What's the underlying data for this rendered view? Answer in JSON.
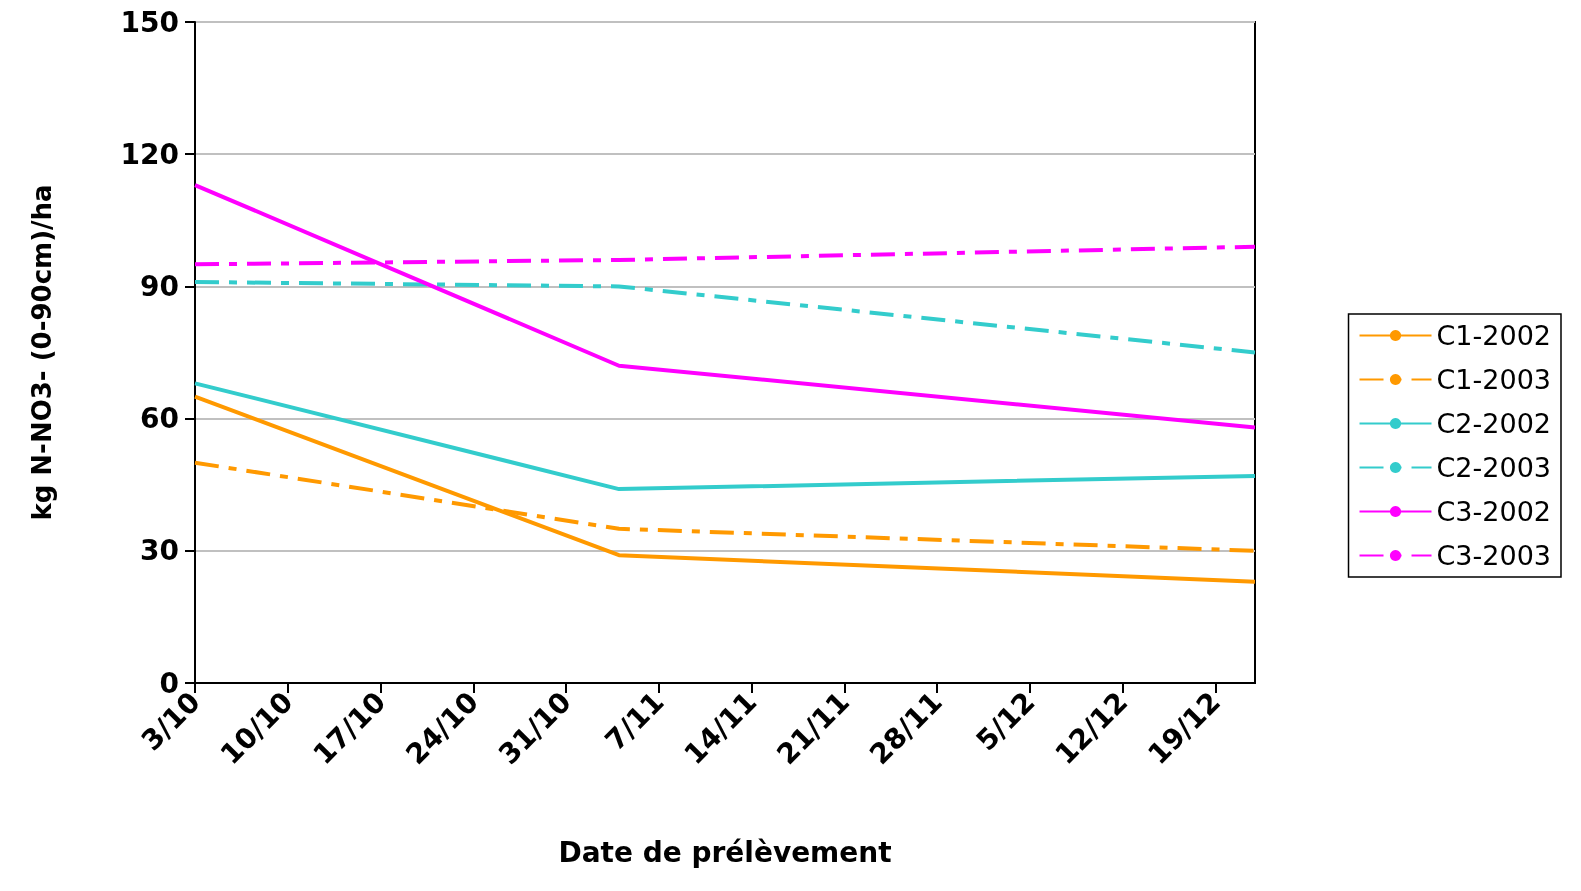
{
  "chart_data": {
    "type": "line",
    "xlabel": "Date de prélèvement",
    "ylabel": "kg N-NO3- (0-90cm)/ha",
    "x": [
      "--10-03",
      "--11-04",
      "--12-22"
    ],
    "series": [
      {
        "name": "C1-2002",
        "color": "#ff9900",
        "values": [
          65,
          29,
          23
        ],
        "line_style": "solid"
      },
      {
        "name": "C1-2003",
        "color": "#ff9900",
        "values": [
          50,
          35,
          30
        ],
        "line_style": "dashed"
      },
      {
        "name": "C2-2002",
        "color": "#33cccc",
        "values": [
          68,
          44,
          47
        ],
        "line_style": "solid"
      },
      {
        "name": "C2-2003",
        "color": "#33cccc",
        "values": [
          91,
          90,
          75
        ],
        "line_style": "dashed"
      },
      {
        "name": "C3-2002",
        "color": "#ff00ff",
        "values": [
          113,
          72,
          58
        ],
        "line_style": "solid"
      },
      {
        "name": "C3-2003",
        "color": "#ff00ff",
        "values": [
          95,
          96,
          99
        ],
        "line_style": "dashed"
      }
    ],
    "xlim": [
      "--10-03",
      "--12-22"
    ],
    "xticks": [
      {
        "value": "--10-03",
        "label": "3/10"
      },
      {
        "value": "--10-10",
        "label": "10/10"
      },
      {
        "value": "--10-17",
        "label": "17/10"
      },
      {
        "value": "--10-24",
        "label": "24/10"
      },
      {
        "value": "--10-31",
        "label": "31/10"
      },
      {
        "value": "--11-07",
        "label": "7/11"
      },
      {
        "value": "--11-14",
        "label": "14/11"
      },
      {
        "value": "--11-21",
        "label": "21/11"
      },
      {
        "value": "--11-28",
        "label": "28/11"
      },
      {
        "value": "--12-05",
        "label": "5/12"
      },
      {
        "value": "--12-12",
        "label": "12/12"
      },
      {
        "value": "--12-19",
        "label": "19/12"
      }
    ],
    "ylim": [
      0,
      150
    ],
    "yticks": [
      0,
      30,
      60,
      90,
      120,
      150
    ],
    "grid": "y",
    "legend": "right",
    "marker": "none"
  }
}
